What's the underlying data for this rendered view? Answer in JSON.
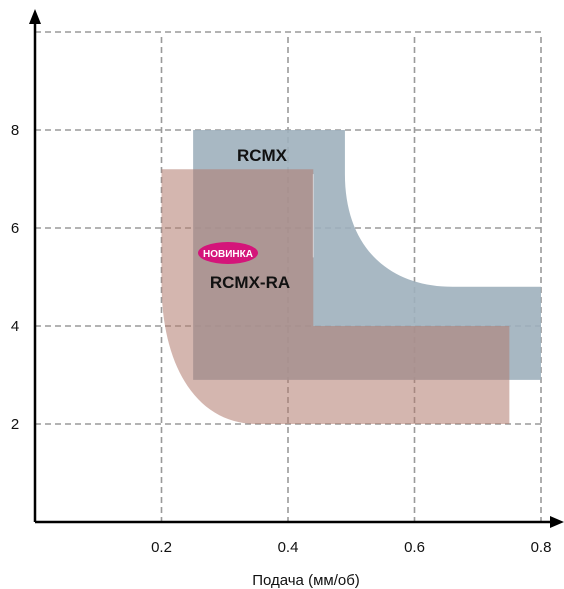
{
  "chart_data": {
    "type": "area",
    "title": "",
    "xlabel": "Подача (мм/об)",
    "ylabel": "",
    "xlim": [
      0,
      0.8
    ],
    "ylim": [
      0,
      10
    ],
    "grid": true,
    "x_ticks": [
      0.2,
      0.4,
      0.6,
      0.8
    ],
    "x_tick_labels": [
      "0.2",
      "0.4",
      "0.6",
      "0.8"
    ],
    "y_ticks": [
      2,
      4,
      6,
      8
    ],
    "y_tick_labels": [
      "2",
      "4",
      "6",
      "8"
    ],
    "regions": [
      {
        "name": "RCMX",
        "color": "#9eb0bc",
        "opacity": 0.9,
        "outer": [
          [
            0.25,
            8.0
          ],
          [
            0.49,
            8.0
          ],
          [
            0.49,
            7.1
          ],
          [
            0.66,
            4.8
          ],
          [
            0.8,
            4.8
          ],
          [
            0.8,
            2.9
          ],
          [
            0.25,
            2.9
          ]
        ],
        "inner_corner": [
          0.44,
          7.1,
          0.8,
          4.8
        ],
        "label": "RCMX",
        "badge": ""
      },
      {
        "name": "RCMX-RA",
        "color": "#b07a6e",
        "opacity": 0.55,
        "outer": [
          [
            0.2,
            7.2
          ],
          [
            0.44,
            7.2
          ],
          [
            0.44,
            4.0
          ],
          [
            0.75,
            4.0
          ],
          [
            0.75,
            2.0
          ],
          [
            0.35,
            2.0
          ],
          [
            0.2,
            4.9
          ]
        ],
        "label": "RCMX-RA",
        "badge": "НОВИНКА"
      }
    ]
  },
  "colors": {
    "axis": "#000000",
    "grid": "#9a9a9a",
    "badge": "#d4157a"
  }
}
